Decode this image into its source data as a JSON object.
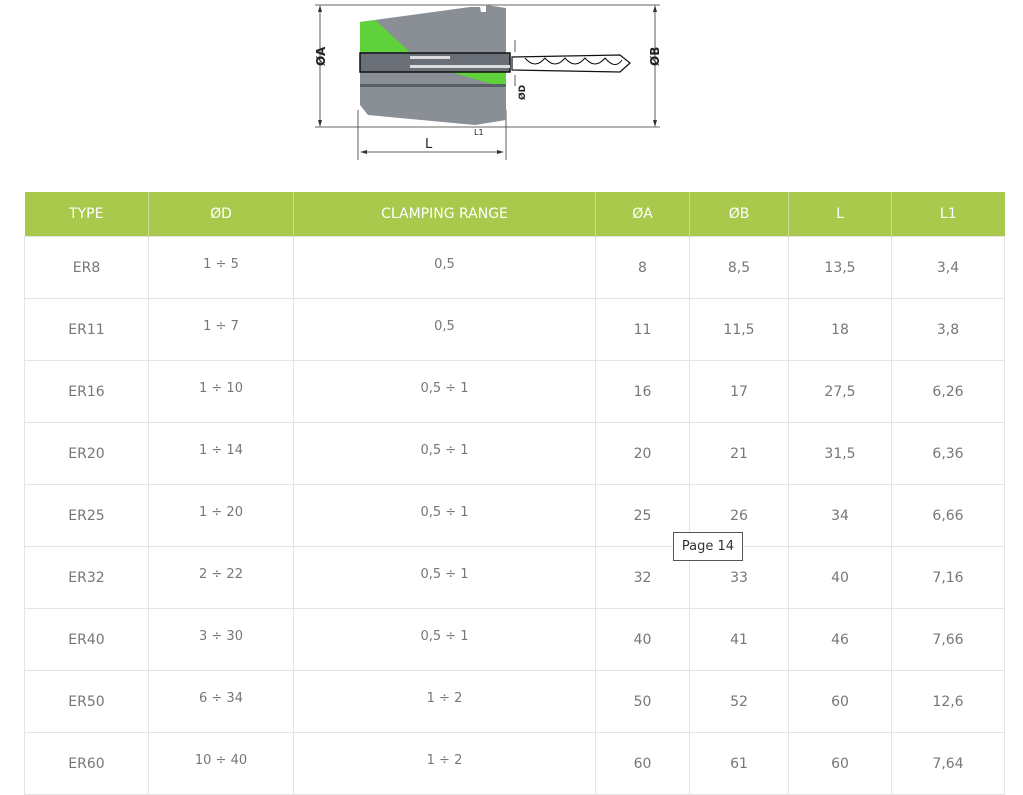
{
  "diagram": {
    "label_a": "ØA",
    "label_b": "ØB",
    "label_d": "ØD",
    "label_l": "L",
    "label_l1": "L1",
    "accent": "#5fd13a"
  },
  "table": {
    "header_color": "#a8c94c",
    "headers": [
      "TYPE",
      "ØD",
      "CLAMPING RANGE",
      "ØA",
      "ØB",
      "L",
      "L1"
    ],
    "rows": [
      [
        "ER8",
        "1 ÷ 5",
        "0,5",
        "8",
        "8,5",
        "13,5",
        "3,4"
      ],
      [
        "ER11",
        "1 ÷ 7",
        "0,5",
        "11",
        "11,5",
        "18",
        "3,8"
      ],
      [
        "ER16",
        "1 ÷ 10",
        "0,5 ÷ 1",
        "16",
        "17",
        "27,5",
        "6,26"
      ],
      [
        "ER20",
        "1 ÷ 14",
        "0,5 ÷ 1",
        "20",
        "21",
        "31,5",
        "6,36"
      ],
      [
        "ER25",
        "1 ÷ 20",
        "0,5 ÷ 1",
        "25",
        "26",
        "34",
        "6,66"
      ],
      [
        "ER32",
        "2 ÷ 22",
        "0,5 ÷ 1",
        "32",
        "33",
        "40",
        "7,16"
      ],
      [
        "ER40",
        "3 ÷ 30",
        "0,5 ÷ 1",
        "40",
        "41",
        "46",
        "7,66"
      ],
      [
        "ER50",
        "6 ÷ 34",
        "1 ÷ 2",
        "50",
        "52",
        "60",
        "12,6"
      ],
      [
        "ER60",
        "10 ÷ 40",
        "1 ÷ 2",
        "60",
        "61",
        "60",
        "7,64"
      ]
    ]
  },
  "tooltip": {
    "text": "Page 14"
  }
}
